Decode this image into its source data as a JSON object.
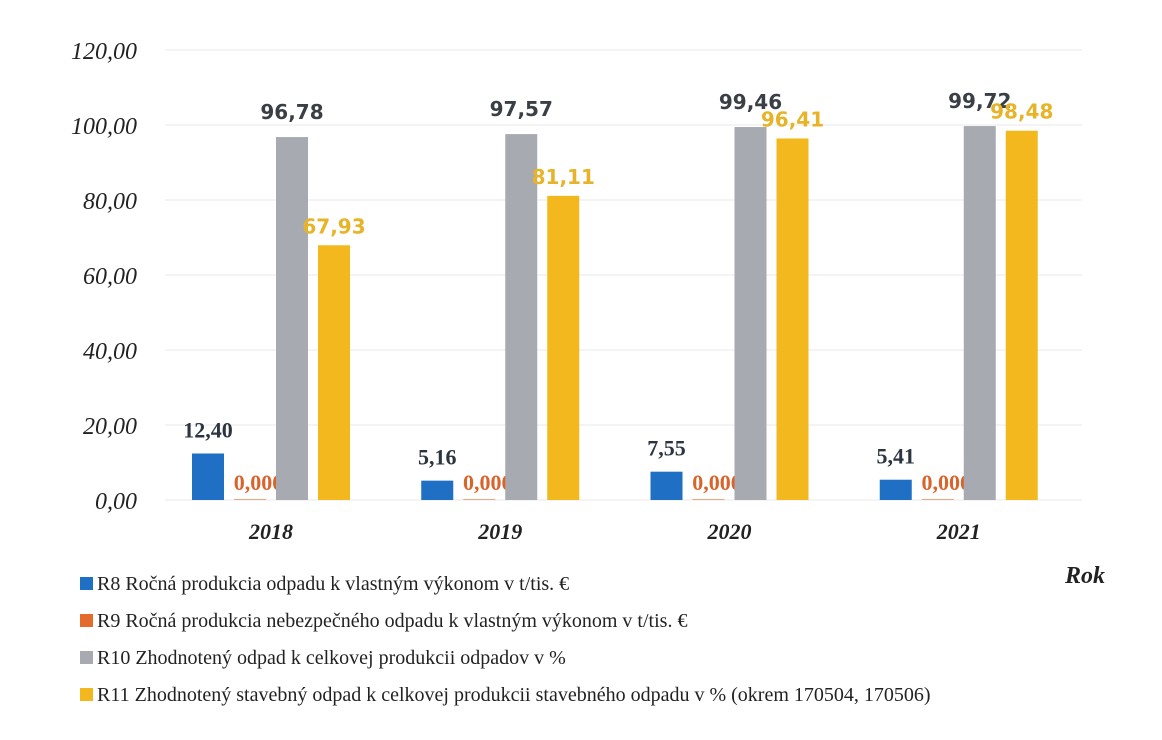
{
  "chart_data": {
    "type": "bar",
    "categories": [
      "2018",
      "2019",
      "2020",
      "2021"
    ],
    "xlabel": "Rok",
    "ylabel": "",
    "ylim": [
      0,
      120
    ],
    "ytick_values": [
      0,
      20,
      40,
      60,
      80,
      100,
      120
    ],
    "ytick_labels": [
      "0,00",
      "20,00",
      "40,00",
      "60,00",
      "80,00",
      "100,00",
      "120,00"
    ],
    "grid": true,
    "legend_position": "bottom",
    "series": [
      {
        "name": "R8 Ročná produkcia odpadu k vlastným výkonom v t/tis. €",
        "color": "#1f6fc5",
        "label_color": "#2b3440",
        "values": [
          12.4,
          5.16,
          7.55,
          5.41
        ],
        "labels": [
          "12,40",
          "5,16",
          "7,55",
          "5,41"
        ]
      },
      {
        "name": "R9 Ročná produkcia nebezpečného odpadu k vlastným výkonom v t/tis. €",
        "color": "#e36b2c",
        "label_color": "#d8632b",
        "values": [
          0.0004,
          0.0002,
          0.0001,
          0.0002
        ],
        "labels": [
          "0,0004",
          "0,0002",
          "0,0001",
          "0,0002"
        ]
      },
      {
        "name": "R10 Zhodnotený odpad k celkovej produkcii odpadov v %",
        "color": "#a7aab1",
        "label_color": "#3a3f46",
        "values": [
          96.78,
          97.57,
          99.46,
          99.72
        ],
        "labels": [
          "96,78",
          "97,57",
          "99,46",
          "99,72"
        ]
      },
      {
        "name": "R11 Zhodnotený stavebný odpad  k celkovej produkcii stavebného odpadu v % (okrem 170504, 170506)",
        "color": "#f3b81e",
        "label_color": "#e7b328",
        "values": [
          67.93,
          81.11,
          96.41,
          98.48
        ],
        "labels": [
          "67,93",
          "81,11",
          "96,41",
          "98,48"
        ]
      }
    ]
  }
}
